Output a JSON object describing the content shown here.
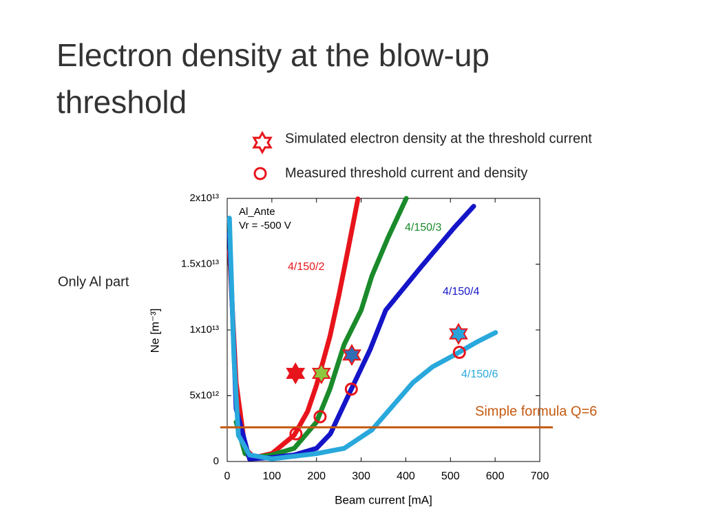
{
  "title": "Electron density at the blow-up threshold",
  "side_note": "Only Al part",
  "chart_data": {
    "type": "scatter",
    "xlabel": "Beam current [mA]",
    "ylabel": "Ne [m⁻³]",
    "annotations": [
      "Al_Ante",
      "Vr = -500 V"
    ],
    "xlim": [
      0,
      700
    ],
    "xticks": [
      0,
      100,
      200,
      300,
      400,
      500,
      600,
      700
    ],
    "ylim": [
      0,
      20000000000000.0
    ],
    "yticks": [
      0,
      {
        "value": 5000000000000.0,
        "label": "5x10¹²"
      },
      {
        "value": 10000000000000.0,
        "label": "1x10¹³"
      },
      {
        "value": 15000000000000.0,
        "label": "1.5x10¹³"
      },
      {
        "value": 20000000000000.0,
        "label": "2x10¹³"
      }
    ],
    "series": [
      {
        "name": "4/150/2",
        "color": "#e8141b",
        "x": [
          5,
          20,
          40,
          60,
          100,
          150,
          180,
          200,
          230,
          250,
          270,
          293
        ],
        "values": [
          16000000000000.0,
          6000000000000.0,
          1000000000000.0,
          300000000000.0,
          600000000000.0,
          2000000000000.0,
          3800000000000.0,
          5800000000000.0,
          9500000000000.0,
          12600000000000.0,
          16000000000000.0,
          20000000000000.0
        ]
      },
      {
        "name": "4/150/3",
        "color": "#1a8a2a",
        "x": [
          20,
          40,
          60,
          100,
          150,
          200,
          230,
          262,
          300,
          324,
          360,
          401
        ],
        "values": [
          3000000000000.0,
          600000000000.0,
          300000000000.0,
          500000000000.0,
          1000000000000.0,
          3000000000000.0,
          5500000000000.0,
          8900000000000.0,
          11500000000000.0,
          14100000000000.0,
          17000000000000.0,
          20000000000000.0
        ]
      },
      {
        "name": "4/150/4",
        "color": "#1414c8",
        "x": [
          5,
          20,
          50,
          100,
          150,
          200,
          231,
          278,
          320,
          355,
          432,
          509,
          552
        ],
        "values": [
          17300000000000.0,
          4000000000000.0,
          200000000000.0,
          300000000000.0,
          500000000000.0,
          1000000000000.0,
          2100000000000.0,
          5500000000000.0,
          8500000000000.0,
          11500000000000.0,
          14700000000000.0,
          17800000000000.0,
          19400000000000.0
        ]
      },
      {
        "name": "4/150/6",
        "color": "#29a8dc",
        "x": [
          5,
          15,
          25,
          50,
          100,
          200,
          262,
          324,
          370,
          416,
          460,
          509,
          560,
          601
        ],
        "values": [
          18500000000000.0,
          8000000000000.0,
          2000000000000.0,
          500000000000.0,
          200000000000.0,
          600000000000.0,
          1000000000000.0,
          2400000000000.0,
          4200000000000.0,
          6000000000000.0,
          7200000000000.0,
          8100000000000.0,
          9100000000000.0,
          9800000000000.0
        ]
      }
    ],
    "simulated": {
      "name": "Simulated electron density at the threshold current",
      "edge_color": "#e8141b",
      "x": [
        153,
        211,
        279,
        518
      ],
      "values": [
        6700000000000.0,
        6700000000000.0,
        8100000000000.0,
        9700000000000.0
      ],
      "colors": [
        "#e8141b",
        "#8dc63f",
        "#2f6db5",
        "#29a3dc"
      ]
    },
    "measured": {
      "name": "Measured threshold current and density",
      "color": "#e8141b",
      "x": [
        154,
        208,
        278,
        520
      ],
      "values": [
        2100000000000.0,
        3400000000000.0,
        5500000000000.0,
        8300000000000.0
      ]
    },
    "reference_line": {
      "name": "Simple formula Q=6",
      "value": 2600000000000.0,
      "color": "#c55a11"
    }
  }
}
